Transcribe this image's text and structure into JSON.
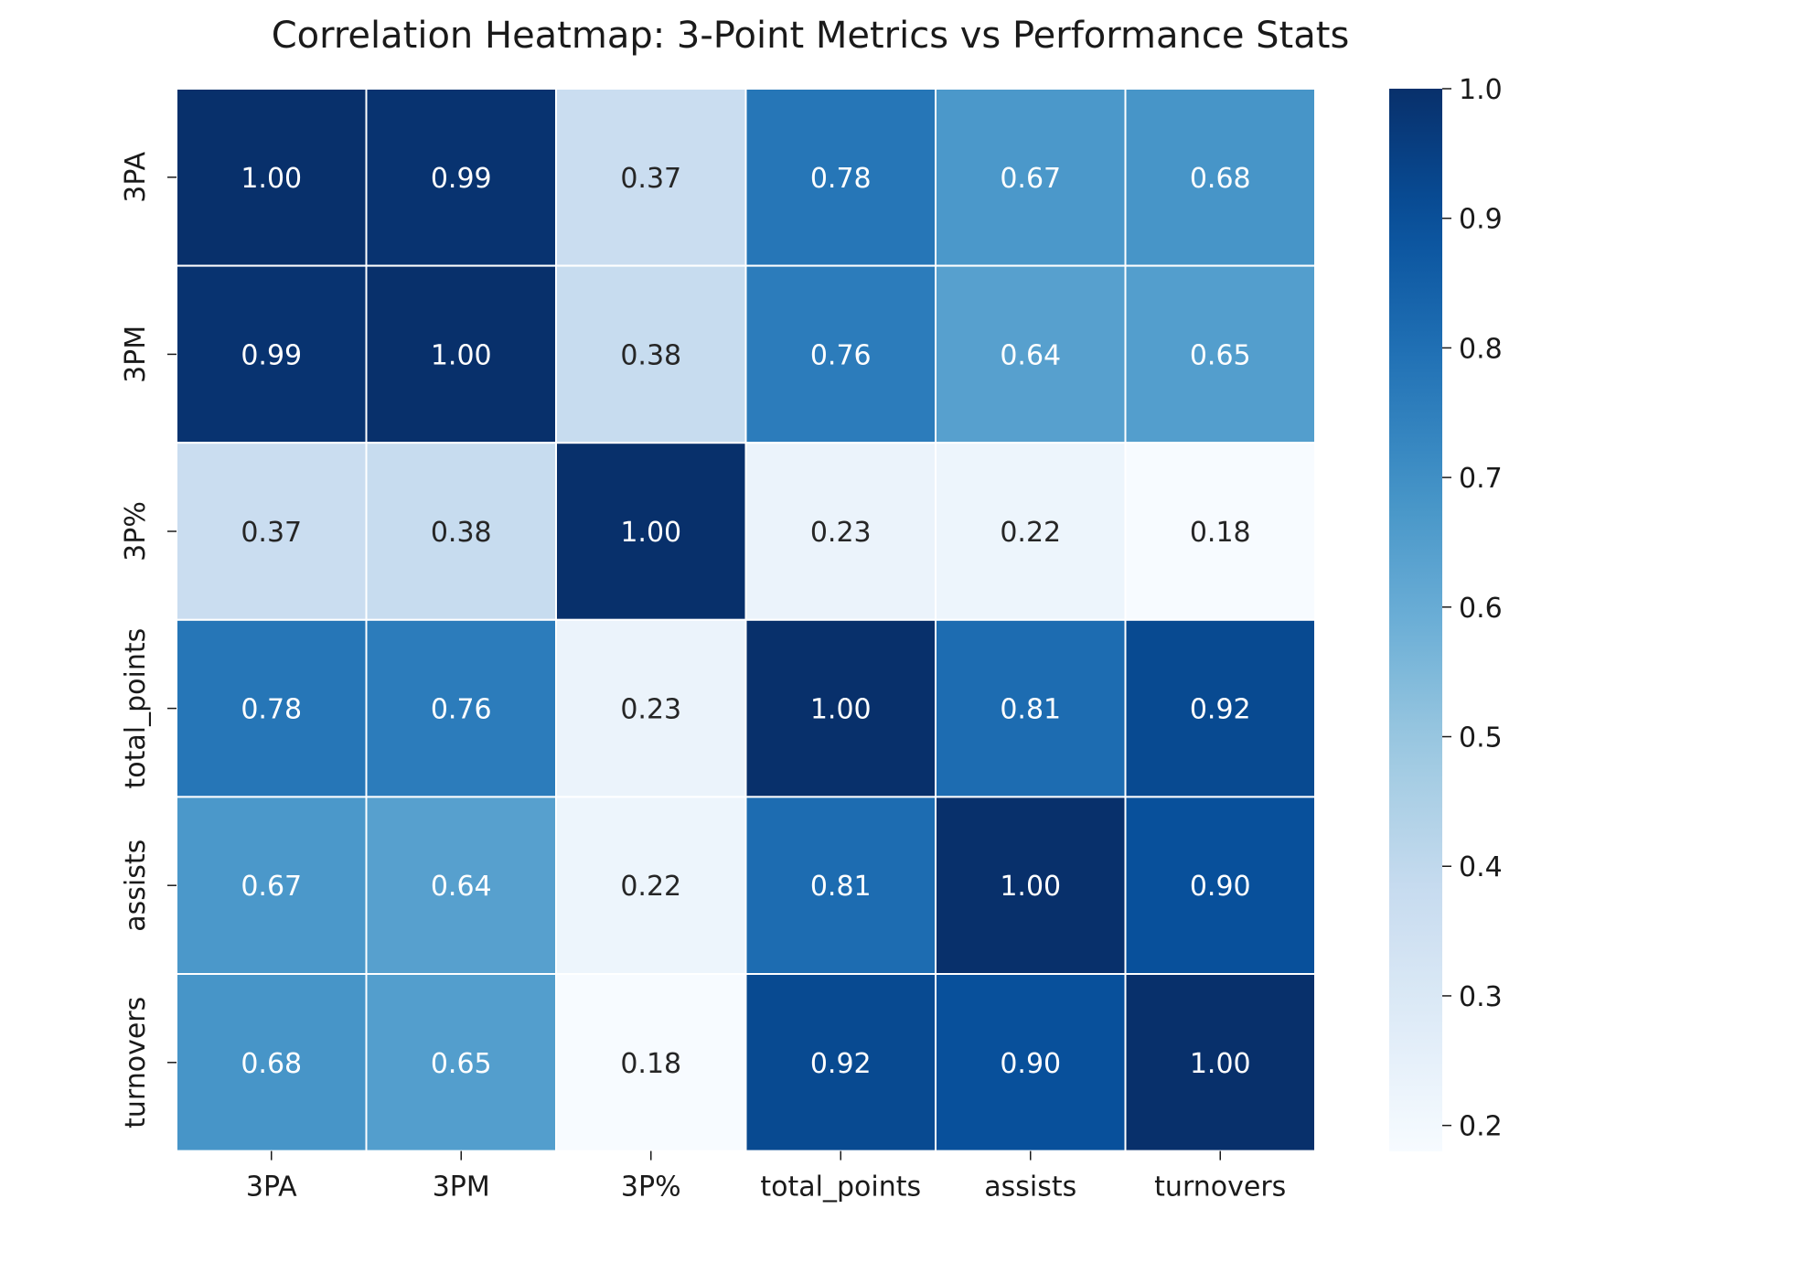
{
  "chart_data": {
    "type": "heatmap",
    "title": "Correlation Heatmap: 3-Point Metrics vs Performance Stats",
    "xlabel": "",
    "ylabel": "",
    "x_categories": [
      "3PA",
      "3PM",
      "3P%",
      "total_points",
      "assists",
      "turnovers"
    ],
    "y_categories": [
      "3PA",
      "3PM",
      "3P%",
      "total_points",
      "assists",
      "turnovers"
    ],
    "values": [
      [
        1.0,
        0.99,
        0.37,
        0.78,
        0.67,
        0.68
      ],
      [
        0.99,
        1.0,
        0.38,
        0.76,
        0.64,
        0.65
      ],
      [
        0.37,
        0.38,
        1.0,
        0.23,
        0.22,
        0.18
      ],
      [
        0.78,
        0.76,
        0.23,
        1.0,
        0.81,
        0.92
      ],
      [
        0.67,
        0.64,
        0.22,
        0.81,
        1.0,
        0.9
      ],
      [
        0.68,
        0.65,
        0.18,
        0.92,
        0.9,
        1.0
      ]
    ],
    "value_format": "2 decimals",
    "annotations": true,
    "colormap": "Blues",
    "color_range": [
      0.18,
      1.0
    ],
    "colorbar": {
      "ticks": [
        0.2,
        0.3,
        0.4,
        0.5,
        0.6,
        0.7,
        0.8,
        0.9,
        1.0
      ],
      "tick_labels": [
        "0.2",
        "0.3",
        "0.4",
        "0.5",
        "0.6",
        "0.7",
        "0.8",
        "0.9",
        "1.0"
      ],
      "placement": "right"
    },
    "grid": false,
    "cell_border_color": "#ffffff"
  }
}
